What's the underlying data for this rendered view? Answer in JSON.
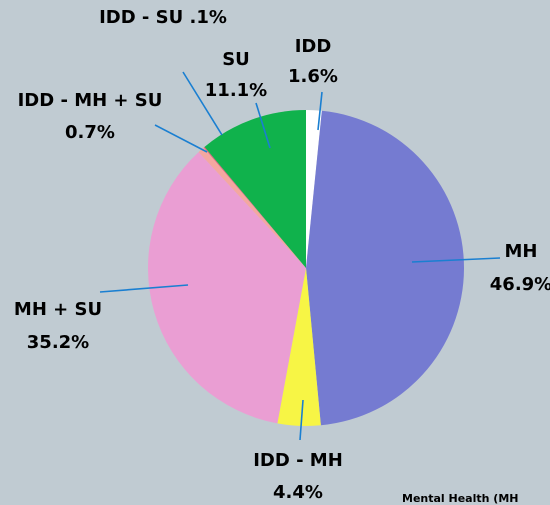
{
  "chart_data": {
    "type": "pie",
    "categories": [
      "IDD",
      "MH",
      "IDD - MH",
      "MH + SU",
      "IDD - MH + SU",
      "IDD - SU",
      "SU"
    ],
    "values": [
      1.6,
      46.9,
      4.4,
      35.2,
      0.7,
      0.1,
      11.1
    ],
    "value_labels": [
      "1.6%",
      "46.9%",
      "4.4%",
      "35.2%",
      "0.7%",
      ".1%",
      "11.1%"
    ],
    "colors": [
      "#ffffff",
      "#757bd1",
      "#f7f545",
      "#ea9ed3",
      "#f4a7a0",
      "#e0607a",
      "#10b24c"
    ],
    "footnote": "Mental Health (MH"
  }
}
